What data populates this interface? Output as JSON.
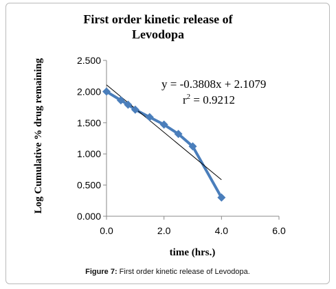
{
  "chart_data": {
    "type": "line",
    "title_line1": "First order kinetic release of",
    "title_line2": "Levodopa",
    "xlabel": "time (hrs.)",
    "ylabel": "Log Cumulative % drug remaining",
    "xlim": [
      0,
      6
    ],
    "ylim": [
      0,
      2.5
    ],
    "x_ticks": [
      "0.0",
      "2.0",
      "4.0",
      "6.0"
    ],
    "y_ticks": [
      "0.000",
      "0.500",
      "1.000",
      "1.500",
      "2.000",
      "2.500"
    ],
    "grid": false,
    "series": [
      {
        "x": [
          0,
          0.5,
          0.75,
          1,
          1.5,
          2,
          2.5,
          3,
          4
        ],
        "y": [
          2.0,
          1.86,
          1.79,
          1.71,
          1.59,
          1.47,
          1.32,
          1.12,
          0.3
        ],
        "color": "#4a7ebb"
      }
    ],
    "trendline": {
      "slope": -0.3808,
      "intercept": 2.1079,
      "x_range": [
        0,
        4
      ],
      "color": "#000000"
    },
    "equation": "y = -0.3808x + 2.1079",
    "r2_prefix": "r",
    "r2_sup": "2",
    "r2_value": " = 0.9212"
  },
  "caption": {
    "label": "Figure 7:",
    "text": " First order kinetic release of Levodopa."
  }
}
